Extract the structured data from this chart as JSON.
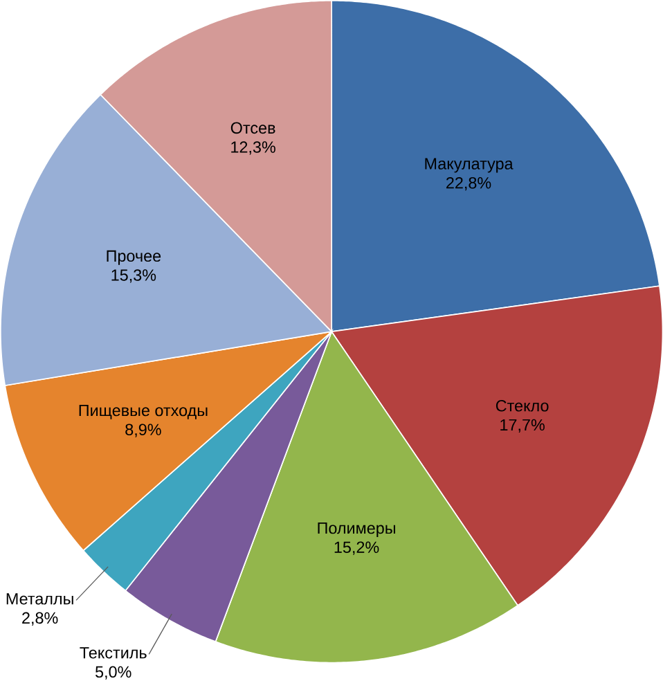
{
  "chart_data": {
    "type": "pie",
    "categories": [
      "Макулатура",
      "Стекло",
      "Полимеры",
      "Текстиль",
      "Металлы",
      "Пищевые отходы",
      "Прочее",
      "Отсев"
    ],
    "values": [
      22.8,
      17.7,
      15.2,
      5.0,
      2.8,
      8.9,
      15.3,
      12.3
    ],
    "value_labels": [
      "22,8%",
      "17,7%",
      "15,2%",
      "5,0%",
      "2,8%",
      "8,9%",
      "15,3%",
      "12,3%"
    ],
    "colors": [
      "#3d6ea8",
      "#b4413f",
      "#93b64c",
      "#785a9a",
      "#3ea5bf",
      "#e5842d",
      "#98afd6",
      "#d49a97"
    ]
  }
}
